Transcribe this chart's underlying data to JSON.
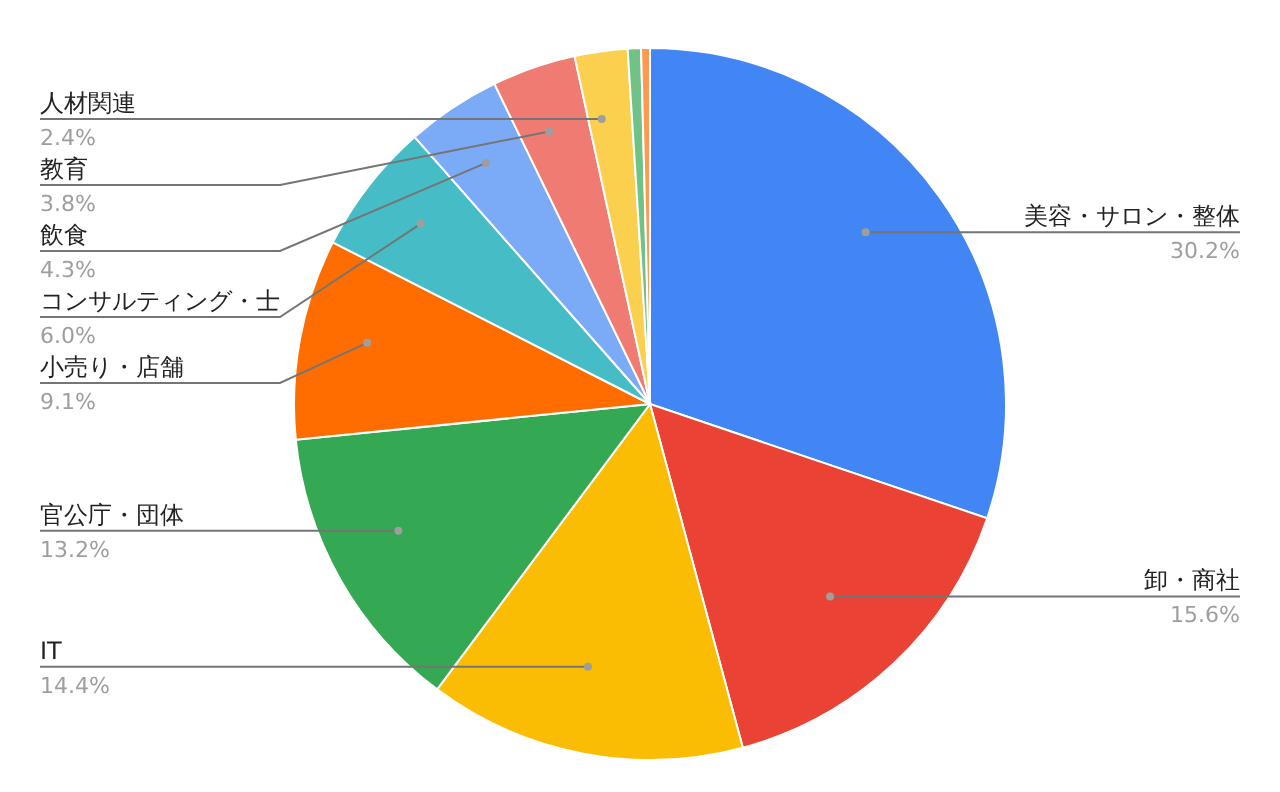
{
  "chart_data": {
    "type": "pie",
    "categories": [
      "美容・サロン・整体",
      "卸・商社",
      "IT",
      "官公庁・団体",
      "小売り・店舗",
      "コンサルティング・士",
      "飲食",
      "教育",
      "人材関連",
      null,
      null
    ],
    "values": [
      30.2,
      15.6,
      14.4,
      13.2,
      9.1,
      6.0,
      4.3,
      3.8,
      2.4,
      0.6,
      0.4
    ],
    "value_labels": [
      "30.2%",
      "15.6%",
      "14.4%",
      "13.2%",
      "9.1%",
      "6.0%",
      "4.3%",
      "3.8%",
      "2.4%",
      null,
      null
    ],
    "colors": [
      "#4285f4",
      "#ea4335",
      "#fbbc04",
      "#34a853",
      "#ff6d01",
      "#46bdc6",
      "#7baaf7",
      "#f07b72",
      "#fcd04f",
      "#71c287",
      "#ff994d"
    ],
    "legend": false
  }
}
